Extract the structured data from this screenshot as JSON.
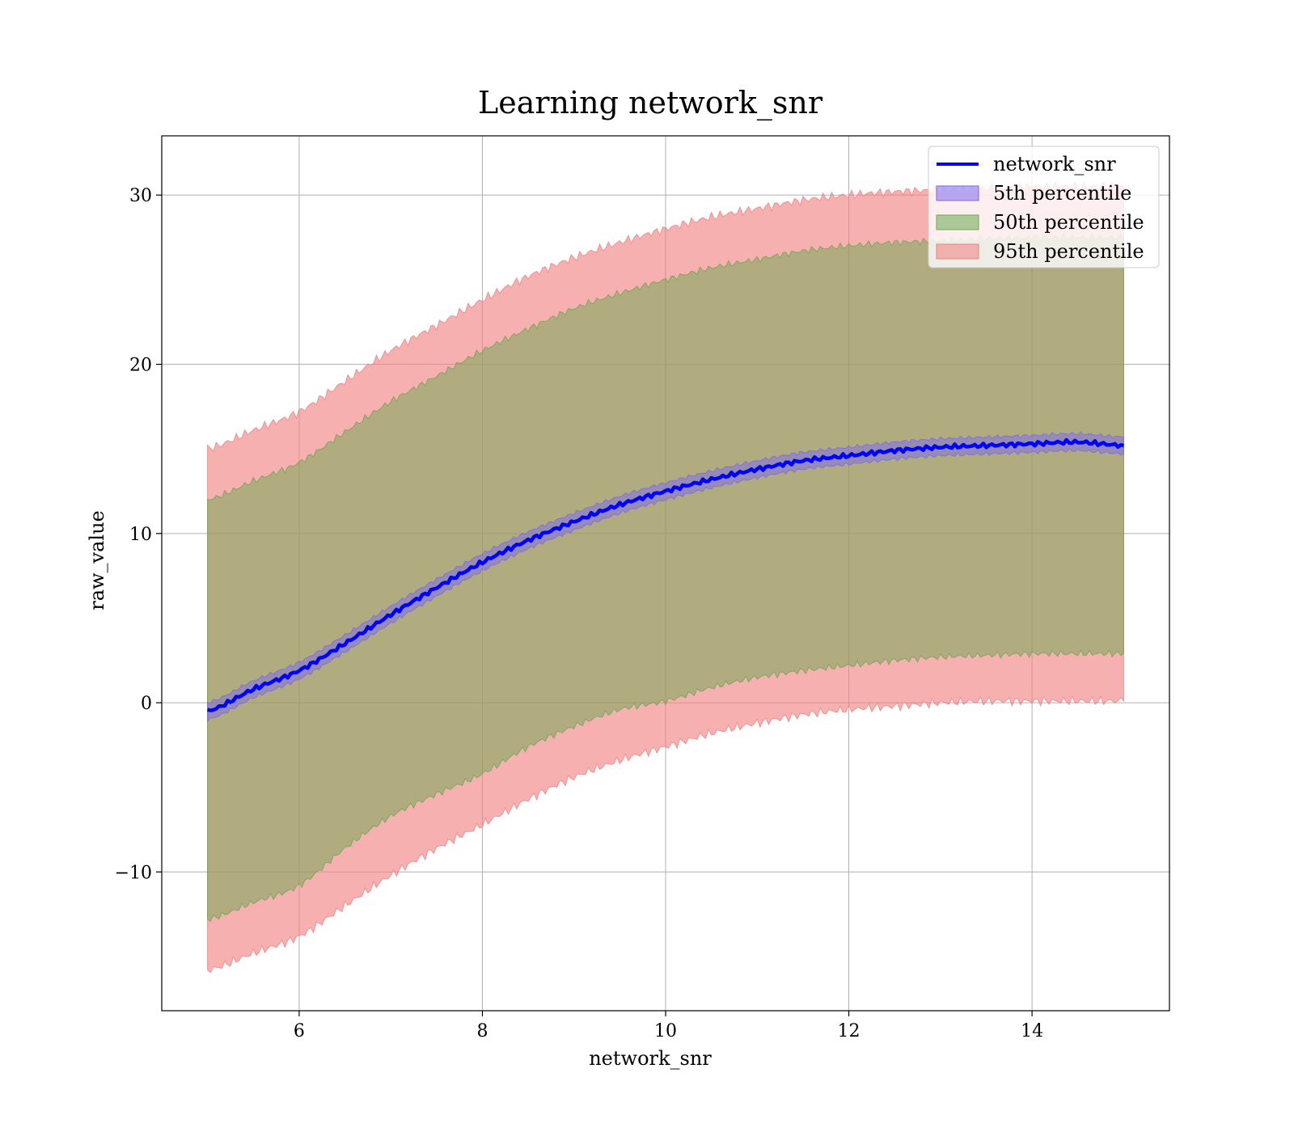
{
  "chart_data": {
    "type": "area",
    "title": "Learning network_snr",
    "xlabel": "network_snr",
    "ylabel": "raw_value",
    "xlim": [
      4.5,
      15.5
    ],
    "ylim": [
      -18.2,
      33.5
    ],
    "xticks": [
      6,
      8,
      10,
      12,
      14
    ],
    "yticks": [
      -10,
      0,
      10,
      20,
      30
    ],
    "xtick_labels": [
      "6",
      "8",
      "10",
      "12",
      "14"
    ],
    "ytick_labels": [
      "−10",
      "0",
      "10",
      "20",
      "30"
    ],
    "grid": true,
    "legend_position": "top-right",
    "legend": [
      {
        "label": "network_snr",
        "kind": "line",
        "color": "#0000ff"
      },
      {
        "label": "5th percentile",
        "kind": "patch",
        "color": "#7b68ee"
      },
      {
        "label": "50th percentile",
        "kind": "patch",
        "color": "#6aa84f"
      },
      {
        "label": "95th percentile",
        "kind": "patch",
        "color": "#f08080"
      }
    ],
    "x": [
      5.0,
      5.5,
      6.0,
      6.5,
      7.0,
      7.5,
      8.0,
      8.5,
      9.0,
      9.5,
      10.0,
      10.5,
      11.0,
      11.5,
      12.0,
      12.5,
      13.0,
      13.5,
      14.0,
      14.5,
      15.0
    ],
    "series": [
      {
        "name": "network_snr",
        "kind": "line",
        "color": "#0000ff",
        "values": [
          -0.5,
          0.8,
          1.9,
          3.5,
          5.2,
          6.8,
          8.3,
          9.6,
          10.7,
          11.7,
          12.5,
          13.2,
          13.8,
          14.3,
          14.6,
          14.9,
          15.1,
          15.2,
          15.3,
          15.4,
          15.2
        ]
      },
      {
        "name": "5th percentile",
        "kind": "band",
        "color": "#7b68ee",
        "lower": [
          -1.0,
          0.3,
          1.4,
          3.0,
          4.7,
          6.3,
          7.8,
          9.1,
          10.2,
          11.2,
          12.0,
          12.7,
          13.3,
          13.8,
          14.1,
          14.4,
          14.6,
          14.7,
          14.8,
          14.9,
          14.7
        ],
        "upper": [
          0.0,
          1.3,
          2.4,
          4.0,
          5.7,
          7.3,
          8.8,
          10.1,
          11.2,
          12.2,
          13.0,
          13.7,
          14.3,
          14.8,
          15.1,
          15.4,
          15.6,
          15.7,
          15.8,
          15.9,
          15.7
        ]
      },
      {
        "name": "50th percentile",
        "kind": "band",
        "color": "#6aa84f",
        "lower": [
          -12.8,
          -11.8,
          -10.8,
          -8.6,
          -6.7,
          -5.4,
          -4.2,
          -2.6,
          -1.4,
          -0.4,
          0.1,
          0.9,
          1.5,
          1.9,
          2.2,
          2.5,
          2.7,
          2.8,
          2.9,
          2.9,
          2.9
        ],
        "upper": [
          12.0,
          13.1,
          14.2,
          16.0,
          17.8,
          19.3,
          20.8,
          22.1,
          23.3,
          24.2,
          25.0,
          25.7,
          26.2,
          26.7,
          27.0,
          27.2,
          27.3,
          27.4,
          27.5,
          27.5,
          27.5
        ]
      },
      {
        "name": "95th percentile",
        "kind": "band",
        "color": "#f08080",
        "lower": [
          -15.8,
          -14.8,
          -13.8,
          -12.0,
          -10.2,
          -8.6,
          -7.2,
          -5.7,
          -4.4,
          -3.4,
          -2.6,
          -1.8,
          -1.2,
          -0.7,
          -0.4,
          -0.2,
          0.0,
          0.1,
          0.1,
          0.1,
          0.1
        ],
        "upper": [
          15.0,
          16.1,
          17.2,
          19.0,
          20.8,
          22.3,
          23.8,
          25.2,
          26.3,
          27.2,
          28.0,
          28.7,
          29.2,
          29.7,
          30.0,
          30.2,
          30.3,
          30.4,
          30.5,
          30.5,
          30.5
        ]
      }
    ]
  }
}
